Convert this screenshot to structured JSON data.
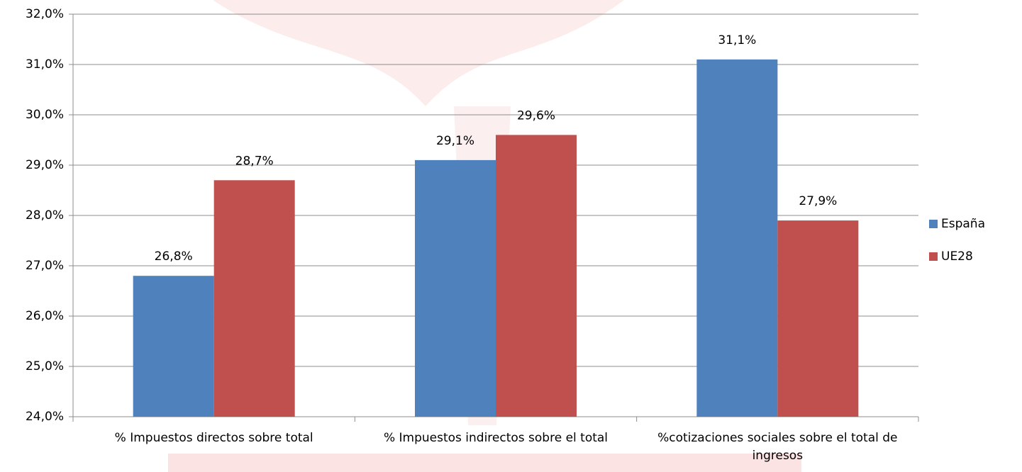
{
  "chart_data": {
    "type": "bar",
    "categories": [
      "% Impuestos directos sobre total",
      "% Impuestos indirectos sobre el total",
      "%cotizaciones sociales sobre el total de ingresos"
    ],
    "series": [
      {
        "name": "España",
        "color": "#4f81bd",
        "values": [
          26.8,
          29.1,
          31.1
        ],
        "value_labels": [
          "26,8%",
          "29,1%",
          "31,1%"
        ]
      },
      {
        "name": "UE28",
        "color": "#c0504d",
        "values": [
          28.7,
          29.6,
          27.9
        ],
        "value_labels": [
          "28,7%",
          "29,6%",
          "27,9%"
        ]
      }
    ],
    "ylim": [
      24,
      32
    ],
    "yticks": [
      {
        "value": 24,
        "label": "24,0%"
      },
      {
        "value": 25,
        "label": "25,0%"
      },
      {
        "value": 26,
        "label": "26,0%"
      },
      {
        "value": 27,
        "label": "27,0%"
      },
      {
        "value": 28,
        "label": "28,0%"
      },
      {
        "value": 29,
        "label": "29,0%"
      },
      {
        "value": 30,
        "label": "30,0%"
      },
      {
        "value": 31,
        "label": "31,0%"
      },
      {
        "value": 32,
        "label": "32,0%"
      }
    ],
    "grid": true,
    "legend": "right"
  }
}
